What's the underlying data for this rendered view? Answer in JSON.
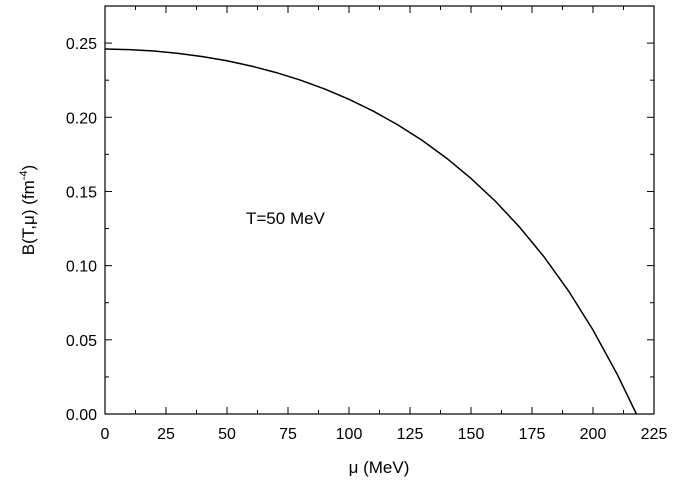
{
  "chart_data": {
    "type": "line",
    "title": "",
    "xlabel": "μ (MeV)",
    "ylabel_main": "B(T,μ) (fm",
    "ylabel_exp": "-4",
    "ylabel_close": ")",
    "annotation": "T=50 MeV",
    "xlim": [
      0,
      225
    ],
    "ylim": [
      0,
      0.275
    ],
    "xticks": [
      0,
      25,
      50,
      75,
      100,
      125,
      150,
      175,
      200,
      225
    ],
    "xtick_labels": [
      "0",
      "25",
      "50",
      "75",
      "100",
      "125",
      "150",
      "175",
      "200",
      "225"
    ],
    "yticks": [
      0.0,
      0.05,
      0.1,
      0.15,
      0.2,
      0.25
    ],
    "ytick_labels": [
      "0.00",
      "0.05",
      "0.10",
      "0.15",
      "0.20",
      "0.25"
    ],
    "grid": false,
    "series": [
      {
        "x": [
          0,
          10,
          20,
          30,
          40,
          50,
          60,
          70,
          80,
          90,
          100,
          110,
          120,
          130,
          140,
          150,
          160,
          170,
          180,
          190,
          200,
          210,
          220,
          224
        ],
        "y": [
          0.246,
          0.2456,
          0.2447,
          0.2431,
          0.2409,
          0.2381,
          0.2345,
          0.2302,
          0.2251,
          0.2191,
          0.2121,
          0.2041,
          0.1949,
          0.1844,
          0.1724,
          0.1588,
          0.1434,
          0.1258,
          0.1058,
          0.0829,
          0.0566,
          0.0265,
          -0.0075,
          -0.0223
        ]
      }
    ]
  }
}
